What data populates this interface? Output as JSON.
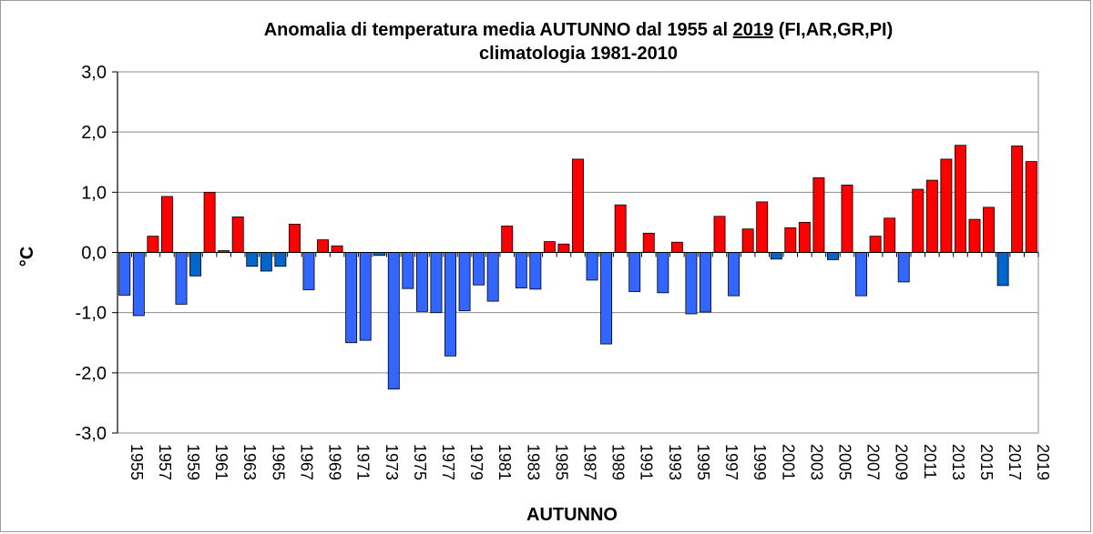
{
  "chart_data": {
    "type": "bar",
    "title_parts": [
      "Anomalia di temperatura media AUTUNNO dal 1955 al ",
      "2019",
      " (FI,AR,GR,PI)"
    ],
    "subtitle": "climatologia 1981-2010",
    "xlabel": "AUTUNNO",
    "ylabel": "°C",
    "ylim": [
      -3.0,
      3.0
    ],
    "yticks": [
      "3,0",
      "2,0",
      "1,0",
      "0,0",
      "-1,0",
      "-2,0",
      "-3,0"
    ],
    "ytick_values": [
      3,
      2,
      1,
      0,
      -1,
      -2,
      -3
    ],
    "grid": true,
    "x_tick_labels": [
      "1955",
      "1957",
      "1959",
      "1961",
      "1963",
      "1965",
      "1967",
      "1969",
      "1971",
      "1973",
      "1975",
      "1977",
      "1979",
      "1981",
      "1983",
      "1985",
      "1987",
      "1989",
      "1991",
      "1993",
      "1995",
      "1997",
      "1999",
      "2001",
      "2003",
      "2005",
      "2007",
      "2009",
      "2011",
      "2013",
      "2015",
      "2017",
      "2019"
    ],
    "categories": [
      "1955",
      "1956",
      "1957",
      "1958",
      "1959",
      "1960",
      "1961",
      "1962",
      "1963",
      "1964",
      "1965",
      "1966",
      "1967",
      "1968",
      "1969",
      "1970",
      "1971",
      "1972",
      "1973",
      "1974",
      "1975",
      "1976",
      "1977",
      "1978",
      "1979",
      "1980",
      "1981",
      "1982",
      "1983",
      "1984",
      "1985",
      "1986",
      "1987",
      "1988",
      "1989",
      "1990",
      "1991",
      "1992",
      "1993",
      "1994",
      "1995",
      "1996",
      "1997",
      "1998",
      "1999",
      "2000",
      "2001",
      "2002",
      "2003",
      "2004",
      "2005",
      "2006",
      "2007",
      "2008",
      "2009",
      "2010",
      "2011",
      "2012",
      "2013",
      "2014",
      "2015",
      "2016",
      "2017",
      "2018",
      "2019"
    ],
    "values": [
      -0.71,
      -1.05,
      0.27,
      0.93,
      -0.86,
      -0.39,
      1.0,
      0.03,
      0.59,
      -0.23,
      -0.31,
      -0.23,
      0.47,
      -0.62,
      0.21,
      0.11,
      -1.5,
      -1.46,
      -0.05,
      -2.27,
      -0.6,
      -0.98,
      -1.0,
      -1.72,
      -0.97,
      -0.54,
      -0.81,
      0.44,
      -0.59,
      -0.61,
      0.18,
      0.14,
      1.55,
      -0.46,
      -1.52,
      0.79,
      -0.65,
      0.32,
      -0.67,
      0.17,
      -1.02,
      -0.99,
      0.6,
      -0.72,
      0.39,
      0.84,
      -0.11,
      0.41,
      0.5,
      1.24,
      -0.12,
      1.12,
      -0.72,
      0.27,
      0.57,
      -0.49,
      1.05,
      1.2,
      1.55,
      1.78,
      0.55,
      0.75,
      -0.55,
      1.77,
      1.51
    ],
    "highlighted_negative_years": [
      "1960",
      "1964",
      "1965",
      "1966",
      "1973",
      "2001",
      "2005",
      "2017"
    ],
    "colors": {
      "positive": "#ff0000",
      "negative": "#3366ff",
      "negative_highlight": "#0066cc",
      "grid": "#8c8c8c",
      "axis": "#000000"
    }
  }
}
